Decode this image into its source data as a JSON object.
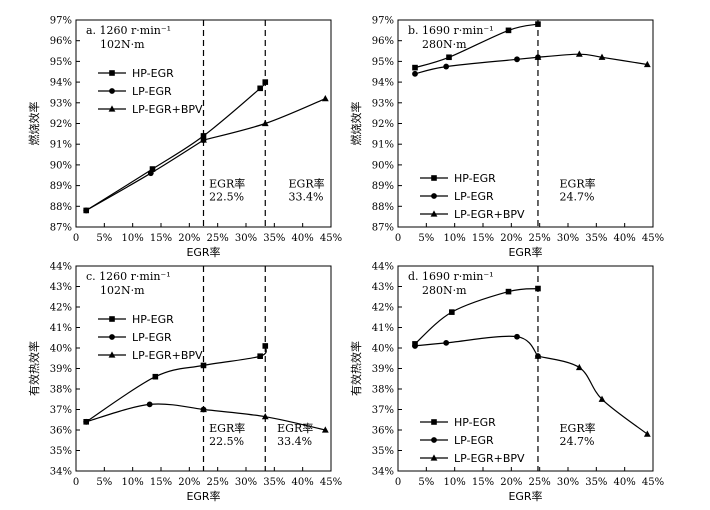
{
  "chart_data": [
    {
      "type": "line",
      "panel": "a",
      "title_line1": "a. 1260 r·min⁻¹",
      "title_line2": "102N·m",
      "xlabel": "EGR率",
      "ylabel": "燃烧效率",
      "xlim": [
        0,
        45
      ],
      "ylim": [
        87,
        97
      ],
      "xticks": [
        0,
        5,
        10,
        15,
        20,
        25,
        30,
        35,
        40,
        45
      ],
      "xtick_labels": [
        "0",
        "5%",
        "10%",
        "15%",
        "20%",
        "25%",
        "30%",
        "35%",
        "40%",
        "45%"
      ],
      "yticks": [
        87,
        88,
        89,
        90,
        91,
        92,
        93,
        94,
        95,
        96,
        97
      ],
      "ytick_labels": [
        "87%",
        "88%",
        "89%",
        "90%",
        "91%",
        "92%",
        "93%",
        "94%",
        "95%",
        "96%",
        "97%"
      ],
      "legend_position": "top-left",
      "series": [
        {
          "name": "HP-EGR",
          "marker": "square",
          "points": [
            [
              1.8,
              87.8
            ],
            [
              13.5,
              89.8
            ],
            [
              22.5,
              91.4
            ],
            [
              32.5,
              93.7
            ],
            [
              33.4,
              94.0
            ]
          ]
        },
        {
          "name": "LP-EGR",
          "marker": "circle",
          "points": [
            [
              1.8,
              87.8
            ],
            [
              13.2,
              89.6
            ],
            [
              22.5,
              91.2
            ]
          ]
        },
        {
          "name": "LP-EGR+BPV",
          "marker": "triangle",
          "points": [
            [
              22.5,
              91.2
            ],
            [
              33.4,
              92.0
            ],
            [
              44,
              93.2
            ]
          ]
        }
      ],
      "vlines": [
        22.5,
        33.4
      ],
      "annotations": [
        {
          "line1": "EGR率",
          "line2": "22.5%",
          "x": 23.5,
          "y": 88.9
        },
        {
          "line1": "EGR率",
          "line2": "33.4%",
          "x": 37.5,
          "y": 88.9
        }
      ]
    },
    {
      "type": "line",
      "panel": "b",
      "title_line1": "b. 1690 r·min⁻¹",
      "title_line2": "280N·m",
      "xlabel": "EGR率",
      "ylabel": "燃烧效率",
      "xlim": [
        0,
        45
      ],
      "ylim": [
        87,
        97
      ],
      "xticks": [
        0,
        5,
        10,
        15,
        20,
        25,
        30,
        35,
        40,
        45
      ],
      "xtick_labels": [
        "0",
        "5%",
        "10%",
        "15%",
        "20%",
        "25%",
        "30%",
        "35%",
        "40%",
        "45%"
      ],
      "yticks": [
        87,
        88,
        89,
        90,
        91,
        92,
        93,
        94,
        95,
        96,
        97
      ],
      "ytick_labels": [
        "87%",
        "88%",
        "89%",
        "90%",
        "91%",
        "92%",
        "93%",
        "94%",
        "95%",
        "96%",
        "97%"
      ],
      "legend_position": "bottom-left",
      "series": [
        {
          "name": "HP-EGR",
          "marker": "square",
          "points": [
            [
              3,
              94.7
            ],
            [
              9,
              95.2
            ],
            [
              19.5,
              96.5
            ],
            [
              24.7,
              96.8
            ]
          ]
        },
        {
          "name": "LP-EGR",
          "marker": "circle",
          "points": [
            [
              3,
              94.4
            ],
            [
              8.5,
              94.75
            ],
            [
              21,
              95.1
            ],
            [
              24.7,
              95.2
            ]
          ]
        },
        {
          "name": "LP-EGR+BPV",
          "marker": "triangle",
          "points": [
            [
              24.7,
              95.2
            ],
            [
              32,
              95.35
            ],
            [
              36,
              95.2
            ],
            [
              44,
              94.85
            ]
          ]
        }
      ],
      "vlines": [
        24.7
      ],
      "annotations": [
        {
          "line1": "EGR率",
          "line2": "24.7%",
          "x": 28.5,
          "y": 88.9
        }
      ]
    },
    {
      "type": "line",
      "panel": "c",
      "title_line1": "c. 1260 r·min⁻¹",
      "title_line2": "102N·m",
      "xlabel": "EGR率",
      "ylabel": "有效热效率",
      "xlim": [
        0,
        45
      ],
      "ylim": [
        34,
        44
      ],
      "xticks": [
        0,
        5,
        10,
        15,
        20,
        25,
        30,
        35,
        40,
        45
      ],
      "xtick_labels": [
        "0",
        "5%",
        "10%",
        "15%",
        "20%",
        "25%",
        "30%",
        "35%",
        "40%",
        "45%"
      ],
      "yticks": [
        34,
        35,
        36,
        37,
        38,
        39,
        40,
        41,
        42,
        43,
        44
      ],
      "ytick_labels": [
        "34%",
        "35%",
        "36%",
        "37%",
        "38%",
        "39%",
        "40%",
        "41%",
        "42%",
        "43%",
        "44%"
      ],
      "legend_position": "top-left",
      "series": [
        {
          "name": "HP-EGR",
          "marker": "square",
          "points": [
            [
              1.8,
              36.4
            ],
            [
              14,
              38.6
            ],
            [
              22.5,
              39.15
            ],
            [
              32.5,
              39.6
            ],
            [
              33.4,
              40.1
            ]
          ]
        },
        {
          "name": "LP-EGR",
          "marker": "circle",
          "points": [
            [
              1.8,
              36.4
            ],
            [
              13,
              37.25
            ],
            [
              22.5,
              37.0
            ]
          ]
        },
        {
          "name": "LP-EGR+BPV",
          "marker": "triangle",
          "points": [
            [
              22.5,
              37.0
            ],
            [
              33.4,
              36.65
            ],
            [
              44,
              36.0
            ]
          ]
        }
      ],
      "vlines": [
        22.5,
        33.4
      ],
      "annotations": [
        {
          "line1": "EGR率",
          "line2": "22.5%",
          "x": 23.5,
          "y": 35.9
        },
        {
          "line1": "EGR率",
          "line2": "33.4%",
          "x": 35.5,
          "y": 35.9
        }
      ]
    },
    {
      "type": "line",
      "panel": "d",
      "title_line1": "d. 1690 r·min⁻¹",
      "title_line2": "280N·m",
      "xlabel": "EGR率",
      "ylabel": "有效热效率",
      "xlim": [
        0,
        45
      ],
      "ylim": [
        34,
        44
      ],
      "xticks": [
        0,
        5,
        10,
        15,
        20,
        25,
        30,
        35,
        40,
        45
      ],
      "xtick_labels": [
        "0",
        "5%",
        "10%",
        "15%",
        "20%",
        "25%",
        "30%",
        "35%",
        "40%",
        "45%"
      ],
      "yticks": [
        34,
        35,
        36,
        37,
        38,
        39,
        40,
        41,
        42,
        43,
        44
      ],
      "ytick_labels": [
        "34%",
        "35%",
        "36%",
        "37%",
        "38%",
        "39%",
        "40%",
        "41%",
        "42%",
        "43%",
        "44%"
      ],
      "legend_position": "bottom-left",
      "series": [
        {
          "name": "HP-EGR",
          "marker": "square",
          "points": [
            [
              3,
              40.2
            ],
            [
              9.5,
              41.75
            ],
            [
              19.5,
              42.75
            ],
            [
              24.7,
              42.9
            ]
          ]
        },
        {
          "name": "LP-EGR",
          "marker": "circle",
          "points": [
            [
              3,
              40.1
            ],
            [
              8.5,
              40.25
            ],
            [
              21,
              40.55
            ],
            [
              24.7,
              39.6
            ]
          ]
        },
        {
          "name": "LP-EGR+BPV",
          "marker": "triangle",
          "points": [
            [
              24.7,
              39.6
            ],
            [
              32,
              39.05
            ],
            [
              36,
              37.5
            ],
            [
              44,
              35.8
            ]
          ]
        }
      ],
      "vlines": [
        24.7
      ],
      "annotations": [
        {
          "line1": "EGR率",
          "line2": "24.7%",
          "x": 28.5,
          "y": 35.9
        }
      ]
    }
  ]
}
